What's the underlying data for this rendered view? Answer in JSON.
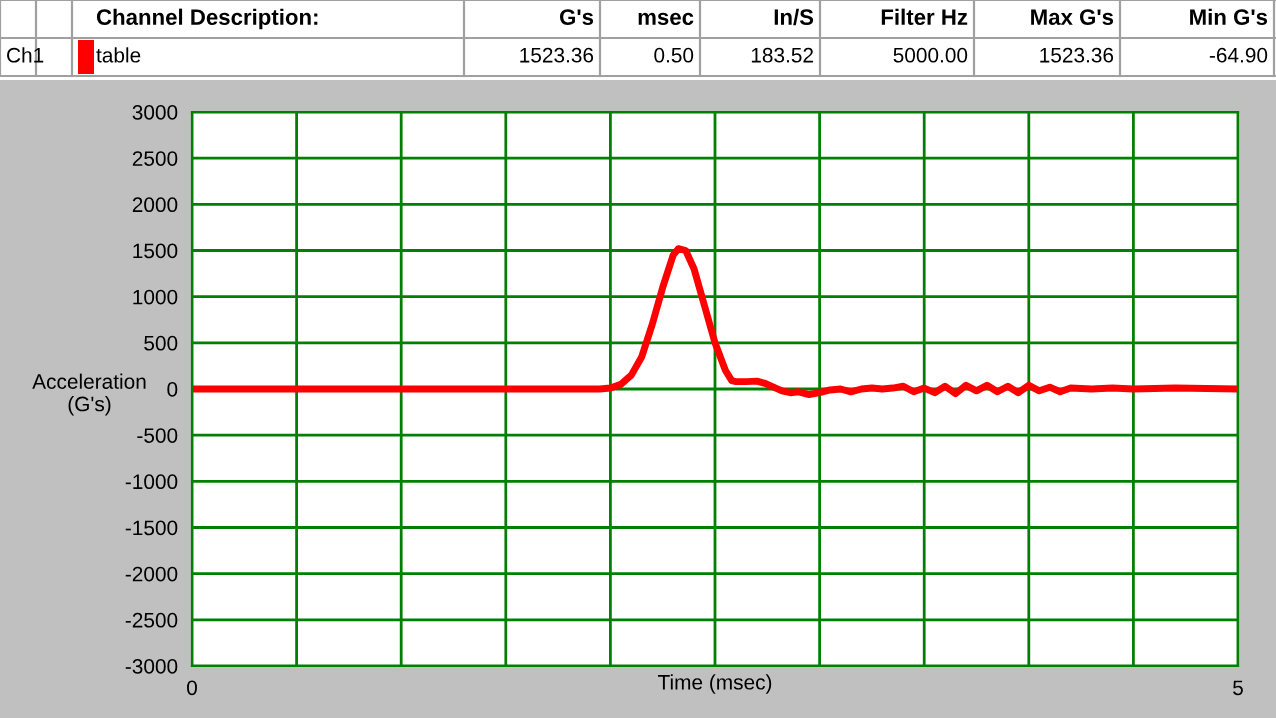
{
  "chart_data": {
    "type": "line",
    "xlabel": "Time (msec)",
    "ylabel": "Acceleration\n(G's)",
    "annotations": [
      "Channel Description:",
      "G's",
      "msec",
      "In/S",
      "Filter Hz",
      "Max G's",
      "Min G's",
      "Ch1",
      "table",
      "1523.36",
      "0.50",
      "183.52",
      "5000.00",
      "1523.36",
      "-64.90"
    ],
    "x": [
      0,
      1.95,
      2.0,
      2.05,
      2.1,
      2.15,
      2.2,
      2.25,
      2.3,
      2.325,
      2.36,
      2.4,
      2.45,
      2.5,
      2.55,
      2.58,
      2.6,
      2.65,
      2.7,
      2.74,
      2.78,
      2.82,
      2.86,
      2.9,
      2.95,
      3.0,
      3.05,
      3.1,
      3.15,
      3.2,
      3.25,
      3.3,
      3.35,
      3.4,
      3.45,
      3.5,
      3.55,
      3.6,
      3.65,
      3.7,
      3.75,
      3.8,
      3.85,
      3.9,
      3.95,
      4.0,
      4.05,
      4.1,
      4.15,
      4.2,
      4.3,
      4.4,
      4.5,
      4.7,
      5.0
    ],
    "series": [
      {
        "color": "#ff0000",
        "values": [
          0,
          0,
          10,
          50,
          150,
          350,
          700,
          1100,
          1450,
          1520,
          1500,
          1300,
          900,
          500,
          200,
          90,
          80,
          80,
          85,
          60,
          20,
          -20,
          -40,
          -30,
          -60,
          -40,
          -10,
          0,
          -30,
          0,
          10,
          0,
          10,
          30,
          -30,
          10,
          -40,
          30,
          -50,
          40,
          -20,
          40,
          -30,
          30,
          -40,
          40,
          -20,
          20,
          -30,
          10,
          0,
          10,
          0,
          10,
          0
        ]
      }
    ],
    "xlim": [
      0,
      5
    ],
    "xticks": [
      0,
      {
        "value": 0.5,
        "label": null
      },
      {
        "value": 1,
        "label": null
      },
      {
        "value": 1.5,
        "label": null
      },
      {
        "value": 2,
        "label": null
      },
      {
        "value": 2.5,
        "label": null
      },
      {
        "value": 3,
        "label": null
      },
      {
        "value": 3.5,
        "label": null
      },
      {
        "value": 4,
        "label": null
      },
      {
        "value": 4.5,
        "label": null
      },
      5
    ],
    "ylim": [
      -3000,
      3000
    ],
    "yticks": [
      -3000,
      -2500,
      -2000,
      -1500,
      -1000,
      -500,
      0,
      500,
      1000,
      1500,
      2000,
      2500,
      3000
    ],
    "grid": true,
    "line_style": "solid",
    "marker": "none"
  }
}
